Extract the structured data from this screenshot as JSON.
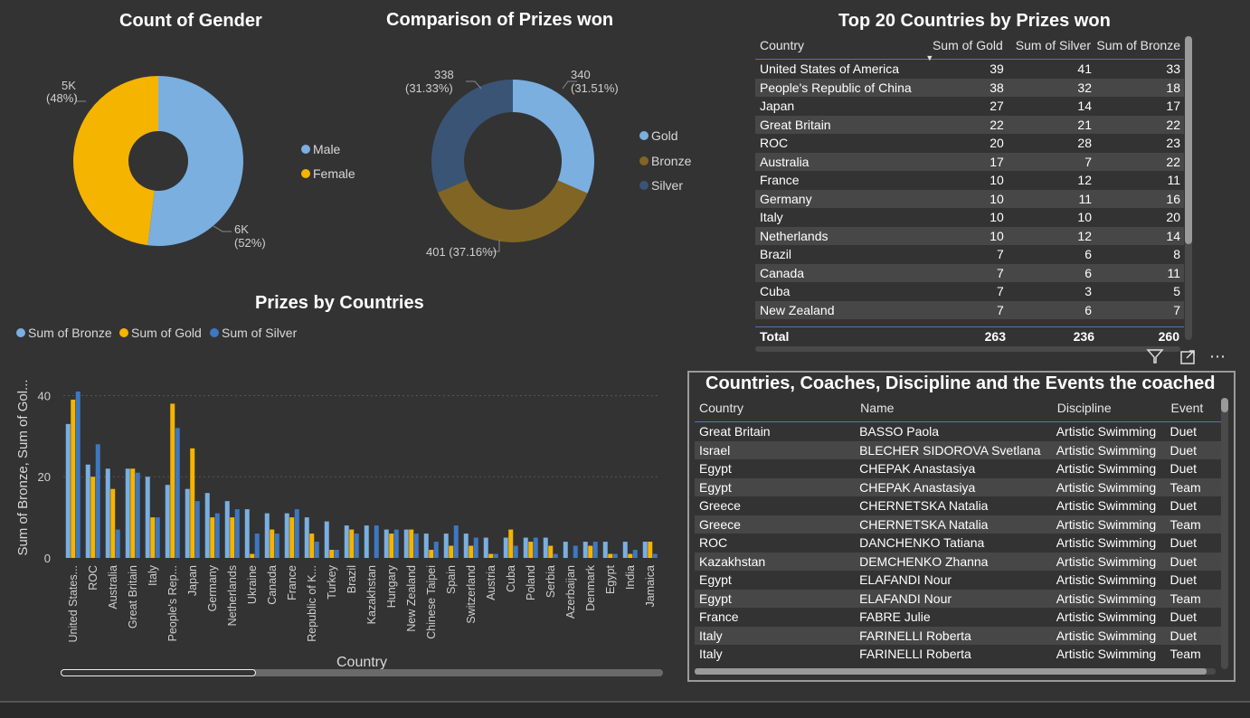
{
  "gender": {
    "title": "Count of Gender",
    "legend": [
      {
        "name": "Male",
        "color": "#7aafe0"
      },
      {
        "name": "Female",
        "color": "#f5b400"
      }
    ],
    "labels": {
      "female_value": "5K",
      "female_pct": "(48%)",
      "male_value": "6K",
      "male_pct": "(52%)"
    },
    "chart_data": {
      "type": "pie",
      "categories": [
        "Male",
        "Female"
      ],
      "values": [
        52,
        48
      ],
      "title": "Count of Gender"
    }
  },
  "prizes": {
    "title": "Comparison of Prizes won",
    "legend": [
      {
        "name": "Gold",
        "color": "#7aafe0"
      },
      {
        "name": "Bronze",
        "color": "#806524"
      },
      {
        "name": "Silver",
        "color": "#3a5475"
      }
    ],
    "labels": {
      "gold_value": "340",
      "gold_pct": "(31.51%)",
      "silver_value": "338",
      "silver_pct": "(31.33%)",
      "bronze": "401 (37.16%)"
    },
    "chart_data": {
      "type": "pie",
      "categories": [
        "Gold",
        "Bronze",
        "Silver"
      ],
      "values": [
        340,
        401,
        338
      ],
      "title": "Comparison of Prizes won"
    }
  },
  "top20": {
    "title": "Top 20 Countries by Prizes won",
    "columns": [
      "Country",
      "Sum of Gold",
      "Sum of Silver",
      "Sum of Bronze"
    ],
    "rows": [
      [
        "United States of America",
        "39",
        "41",
        "33"
      ],
      [
        "People's Republic of China",
        "38",
        "32",
        "18"
      ],
      [
        "Japan",
        "27",
        "14",
        "17"
      ],
      [
        "Great Britain",
        "22",
        "21",
        "22"
      ],
      [
        "ROC",
        "20",
        "28",
        "23"
      ],
      [
        "Australia",
        "17",
        "7",
        "22"
      ],
      [
        "France",
        "10",
        "12",
        "11"
      ],
      [
        "Germany",
        "10",
        "11",
        "16"
      ],
      [
        "Italy",
        "10",
        "10",
        "20"
      ],
      [
        "Netherlands",
        "10",
        "12",
        "14"
      ],
      [
        "Brazil",
        "7",
        "6",
        "8"
      ],
      [
        "Canada",
        "7",
        "6",
        "11"
      ],
      [
        "Cuba",
        "7",
        "3",
        "5"
      ],
      [
        "New Zealand",
        "7",
        "6",
        "7"
      ]
    ],
    "total": [
      "Total",
      "263",
      "236",
      "260"
    ]
  },
  "coaches": {
    "title": "Countries, Coaches, Discipline and the Events the coached",
    "columns": [
      "Country",
      "Name",
      "Discipline",
      "Event"
    ],
    "rows": [
      [
        "Great Britain",
        "BASSO Paola",
        "Artistic Swimming",
        "Duet"
      ],
      [
        "Israel",
        "BLECHER SIDOROVA Svetlana",
        "Artistic Swimming",
        "Duet"
      ],
      [
        "Egypt",
        "CHEPAK Anastasiya",
        "Artistic Swimming",
        "Duet"
      ],
      [
        "Egypt",
        "CHEPAK Anastasiya",
        "Artistic Swimming",
        "Team"
      ],
      [
        "Greece",
        "CHERNETSKA Natalia",
        "Artistic Swimming",
        "Duet"
      ],
      [
        "Greece",
        "CHERNETSKA Natalia",
        "Artistic Swimming",
        "Team"
      ],
      [
        "ROC",
        "DANCHENKO Tatiana",
        "Artistic Swimming",
        "Duet"
      ],
      [
        "Kazakhstan",
        "DEMCHENKO Zhanna",
        "Artistic Swimming",
        "Duet"
      ],
      [
        "Egypt",
        "ELAFANDI Nour",
        "Artistic Swimming",
        "Duet"
      ],
      [
        "Egypt",
        "ELAFANDI Nour",
        "Artistic Swimming",
        "Team"
      ],
      [
        "France",
        "FABRE Julie",
        "Artistic Swimming",
        "Duet"
      ],
      [
        "Italy",
        "FARINELLI Roberta",
        "Artistic Swimming",
        "Duet"
      ],
      [
        "Italy",
        "FARINELLI Roberta",
        "Artistic Swimming",
        "Team"
      ]
    ]
  },
  "bars": {
    "title": "Prizes by Countries",
    "legend": [
      {
        "name": "Sum of Bronze",
        "color": "#7aafe0"
      },
      {
        "name": "Sum of Gold",
        "color": "#f5b400"
      },
      {
        "name": "Sum of Silver",
        "color": "#3d78c1"
      }
    ],
    "chart_data": {
      "type": "bar",
      "title": "Prizes by Countries",
      "xlabel": "Country",
      "ylabel": "Sum of Bronze, Sum of Gol...",
      "ylim": [
        0,
        45
      ],
      "yticks": [
        0,
        20,
        40
      ],
      "categories": [
        "United States...",
        "ROC",
        "Australia",
        "Great Britain",
        "Italy",
        "People's Rep...",
        "Japan",
        "Germany",
        "Netherlands",
        "Ukraine",
        "Canada",
        "France",
        "Republic of K...",
        "Turkey",
        "Brazil",
        "Kazakhstan",
        "Hungary",
        "New Zealand",
        "Chinese Taipei",
        "Spain",
        "Switzerland",
        "Austria",
        "Cuba",
        "Poland",
        "Serbia",
        "Azerbaijan",
        "Denmark",
        "Egypt",
        "India",
        "Jamaica"
      ],
      "series": [
        {
          "name": "Sum of Bronze",
          "values": [
            33,
            23,
            22,
            22,
            20,
            18,
            17,
            16,
            14,
            12,
            11,
            11,
            10,
            9,
            8,
            8,
            7,
            7,
            6,
            6,
            6,
            5,
            5,
            5,
            5,
            4,
            4,
            4,
            4,
            4
          ]
        },
        {
          "name": "Sum of Gold",
          "values": [
            39,
            20,
            17,
            22,
            10,
            38,
            27,
            10,
            10,
            1,
            7,
            10,
            6,
            2,
            7,
            0,
            6,
            7,
            2,
            3,
            3,
            1,
            7,
            4,
            3,
            0,
            3,
            1,
            1,
            4
          ]
        },
        {
          "name": "Sum of Silver",
          "values": [
            41,
            28,
            7,
            21,
            10,
            32,
            14,
            11,
            12,
            6,
            6,
            12,
            4,
            2,
            6,
            8,
            7,
            6,
            4,
            8,
            5,
            1,
            3,
            5,
            1,
            3,
            4,
            1,
            2,
            1
          ]
        }
      ]
    }
  }
}
